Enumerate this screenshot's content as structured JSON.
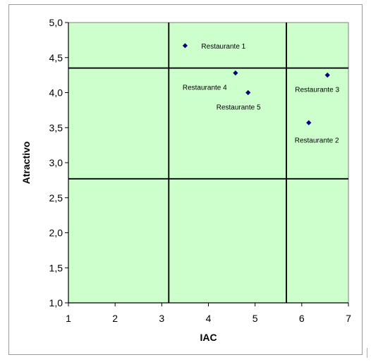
{
  "chart_data": {
    "type": "scatter",
    "title": "",
    "xlabel": "IAC",
    "ylabel": "Atractivo",
    "xlim": [
      1,
      7
    ],
    "ylim": [
      1.0,
      5.0
    ],
    "x_ticks": [
      "1",
      "2",
      "3",
      "4",
      "5",
      "6",
      "7"
    ],
    "y_ticks": [
      "1,0",
      "1,5",
      "2,0",
      "2,5",
      "3,0",
      "3,5",
      "4,0",
      "4,5",
      "5,0"
    ],
    "background_color": "#ccffcc",
    "marker_color": "#000080",
    "divider_lines": {
      "vertical_x": [
        3.15,
        5.67
      ],
      "horizontal_y": [
        2.77,
        4.35
      ]
    },
    "points": [
      {
        "label": "Restaurante 1",
        "x": 3.5,
        "y": 4.67
      },
      {
        "label": "Restaurante 2",
        "x": 6.15,
        "y": 3.57
      },
      {
        "label": "Restaurante 3",
        "x": 6.55,
        "y": 4.25
      },
      {
        "label": "Restaurante 4",
        "x": 4.58,
        "y": 4.28
      },
      {
        "label": "Restaurante 5",
        "x": 4.85,
        "y": 4.0
      }
    ]
  }
}
